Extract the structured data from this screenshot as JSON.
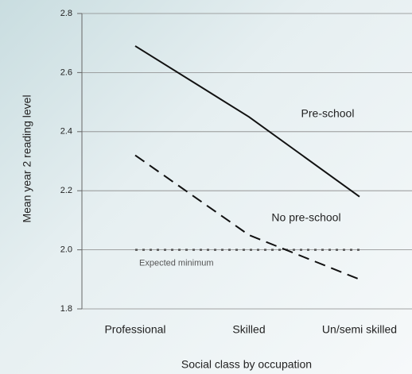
{
  "chart_data": {
    "type": "line",
    "xlabel": "Social class by occupation",
    "ylabel": "Mean year 2 reading level",
    "categories": [
      "Professional",
      "Skilled",
      "Un/semi skilled"
    ],
    "series": [
      {
        "name": "Pre-school",
        "color": "#111111",
        "dash": "solid",
        "values": [
          2.69,
          2.45,
          2.18
        ]
      },
      {
        "name": "No pre-school",
        "color": "#111111",
        "dash": "dashed",
        "values": [
          2.32,
          2.05,
          1.9
        ]
      }
    ],
    "reference_lines": [
      {
        "value": 2,
        "label": "Expected minimum",
        "color": "#555555"
      }
    ],
    "ylim": [
      1.8,
      2.8
    ],
    "yticks": [
      1.8,
      {
        "value": 2,
        "label": "2.0"
      },
      2.2,
      2.4,
      2.6,
      2.8
    ],
    "grid": true
  }
}
